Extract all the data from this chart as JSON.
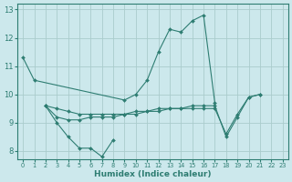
{
  "title": "",
  "xlabel": "Humidex (Indice chaleur)",
  "bg_color": "#cce8ec",
  "grid_color": "#aacccc",
  "line_color": "#2e7d72",
  "xlim": [
    -0.5,
    23.5
  ],
  "ylim": [
    7.7,
    13.2
  ],
  "yticks": [
    8,
    9,
    10,
    11,
    12,
    13
  ],
  "xticks": [
    0,
    1,
    2,
    3,
    4,
    5,
    6,
    7,
    8,
    9,
    10,
    11,
    12,
    13,
    14,
    15,
    16,
    17,
    18,
    19,
    20,
    21,
    22,
    23
  ],
  "series": [
    {
      "x": [
        0,
        1,
        9,
        10,
        11,
        12,
        13,
        14,
        15,
        16,
        17
      ],
      "y": [
        11.3,
        10.5,
        9.8,
        10.0,
        10.5,
        11.5,
        12.3,
        12.2,
        12.6,
        12.8,
        9.7
      ]
    },
    {
      "x": [
        2,
        3,
        4,
        5,
        6,
        7,
        8
      ],
      "y": [
        9.6,
        9.0,
        8.5,
        8.1,
        8.1,
        7.8,
        8.4
      ]
    },
    {
      "x": [
        2,
        3,
        4,
        5,
        6,
        7,
        8,
        9,
        10,
        11,
        12,
        13,
        14,
        15,
        16,
        17,
        18,
        19,
        20,
        21
      ],
      "y": [
        9.6,
        9.2,
        9.1,
        9.1,
        9.2,
        9.2,
        9.2,
        9.3,
        9.4,
        9.4,
        9.5,
        9.5,
        9.5,
        9.6,
        9.6,
        9.6,
        8.5,
        9.2,
        9.9,
        10.0
      ]
    },
    {
      "x": [
        2,
        3,
        4,
        5,
        6,
        7,
        8,
        9,
        10,
        11,
        12,
        13,
        14,
        15,
        16,
        17,
        18,
        19,
        20,
        21
      ],
      "y": [
        9.6,
        9.5,
        9.4,
        9.3,
        9.3,
        9.3,
        9.3,
        9.3,
        9.3,
        9.4,
        9.4,
        9.5,
        9.5,
        9.5,
        9.5,
        9.5,
        8.6,
        9.3,
        9.9,
        10.0
      ]
    }
  ]
}
